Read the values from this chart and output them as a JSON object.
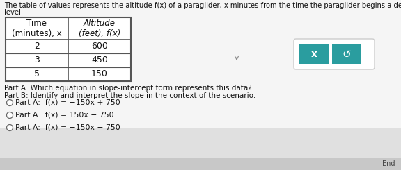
{
  "title_text_line1": "The table of values represents the altitude f(x) of a paraglider, x minutes from the time the paraglider begins a descent to a landing site located at sea",
  "title_text_line2": "level.",
  "table_headers": [
    "Time\n(minutes), x",
    "Altitude\n(feet), f(x)"
  ],
  "table_rows": [
    [
      "2",
      "600"
    ],
    [
      "3",
      "450"
    ],
    [
      "5",
      "150"
    ]
  ],
  "question_line1": "Part A: Which equation in slope-intercept form represents this data?",
  "question_line2": "Part B: Identify and interpret the slope in the context of the scenario.",
  "options": [
    "Part A:  f(x) = −150x + 750",
    "Part A:  f(x) = 150x − 750",
    "Part A:  f(x) = −150x − 750"
  ],
  "bg_color": "#e0e0e0",
  "white_panel_color": "#f0f0f0",
  "table_bg": "#ffffff",
  "table_border": "#555555",
  "button_bg": "#2a9d9f",
  "button_border": "#ffffff",
  "button_container": "#d0d0d0",
  "title_fontsize": 7.2,
  "question_fontsize": 7.5,
  "option_fontsize": 7.8,
  "table_header_fontsize": 8.5,
  "table_data_fontsize": 9.0
}
